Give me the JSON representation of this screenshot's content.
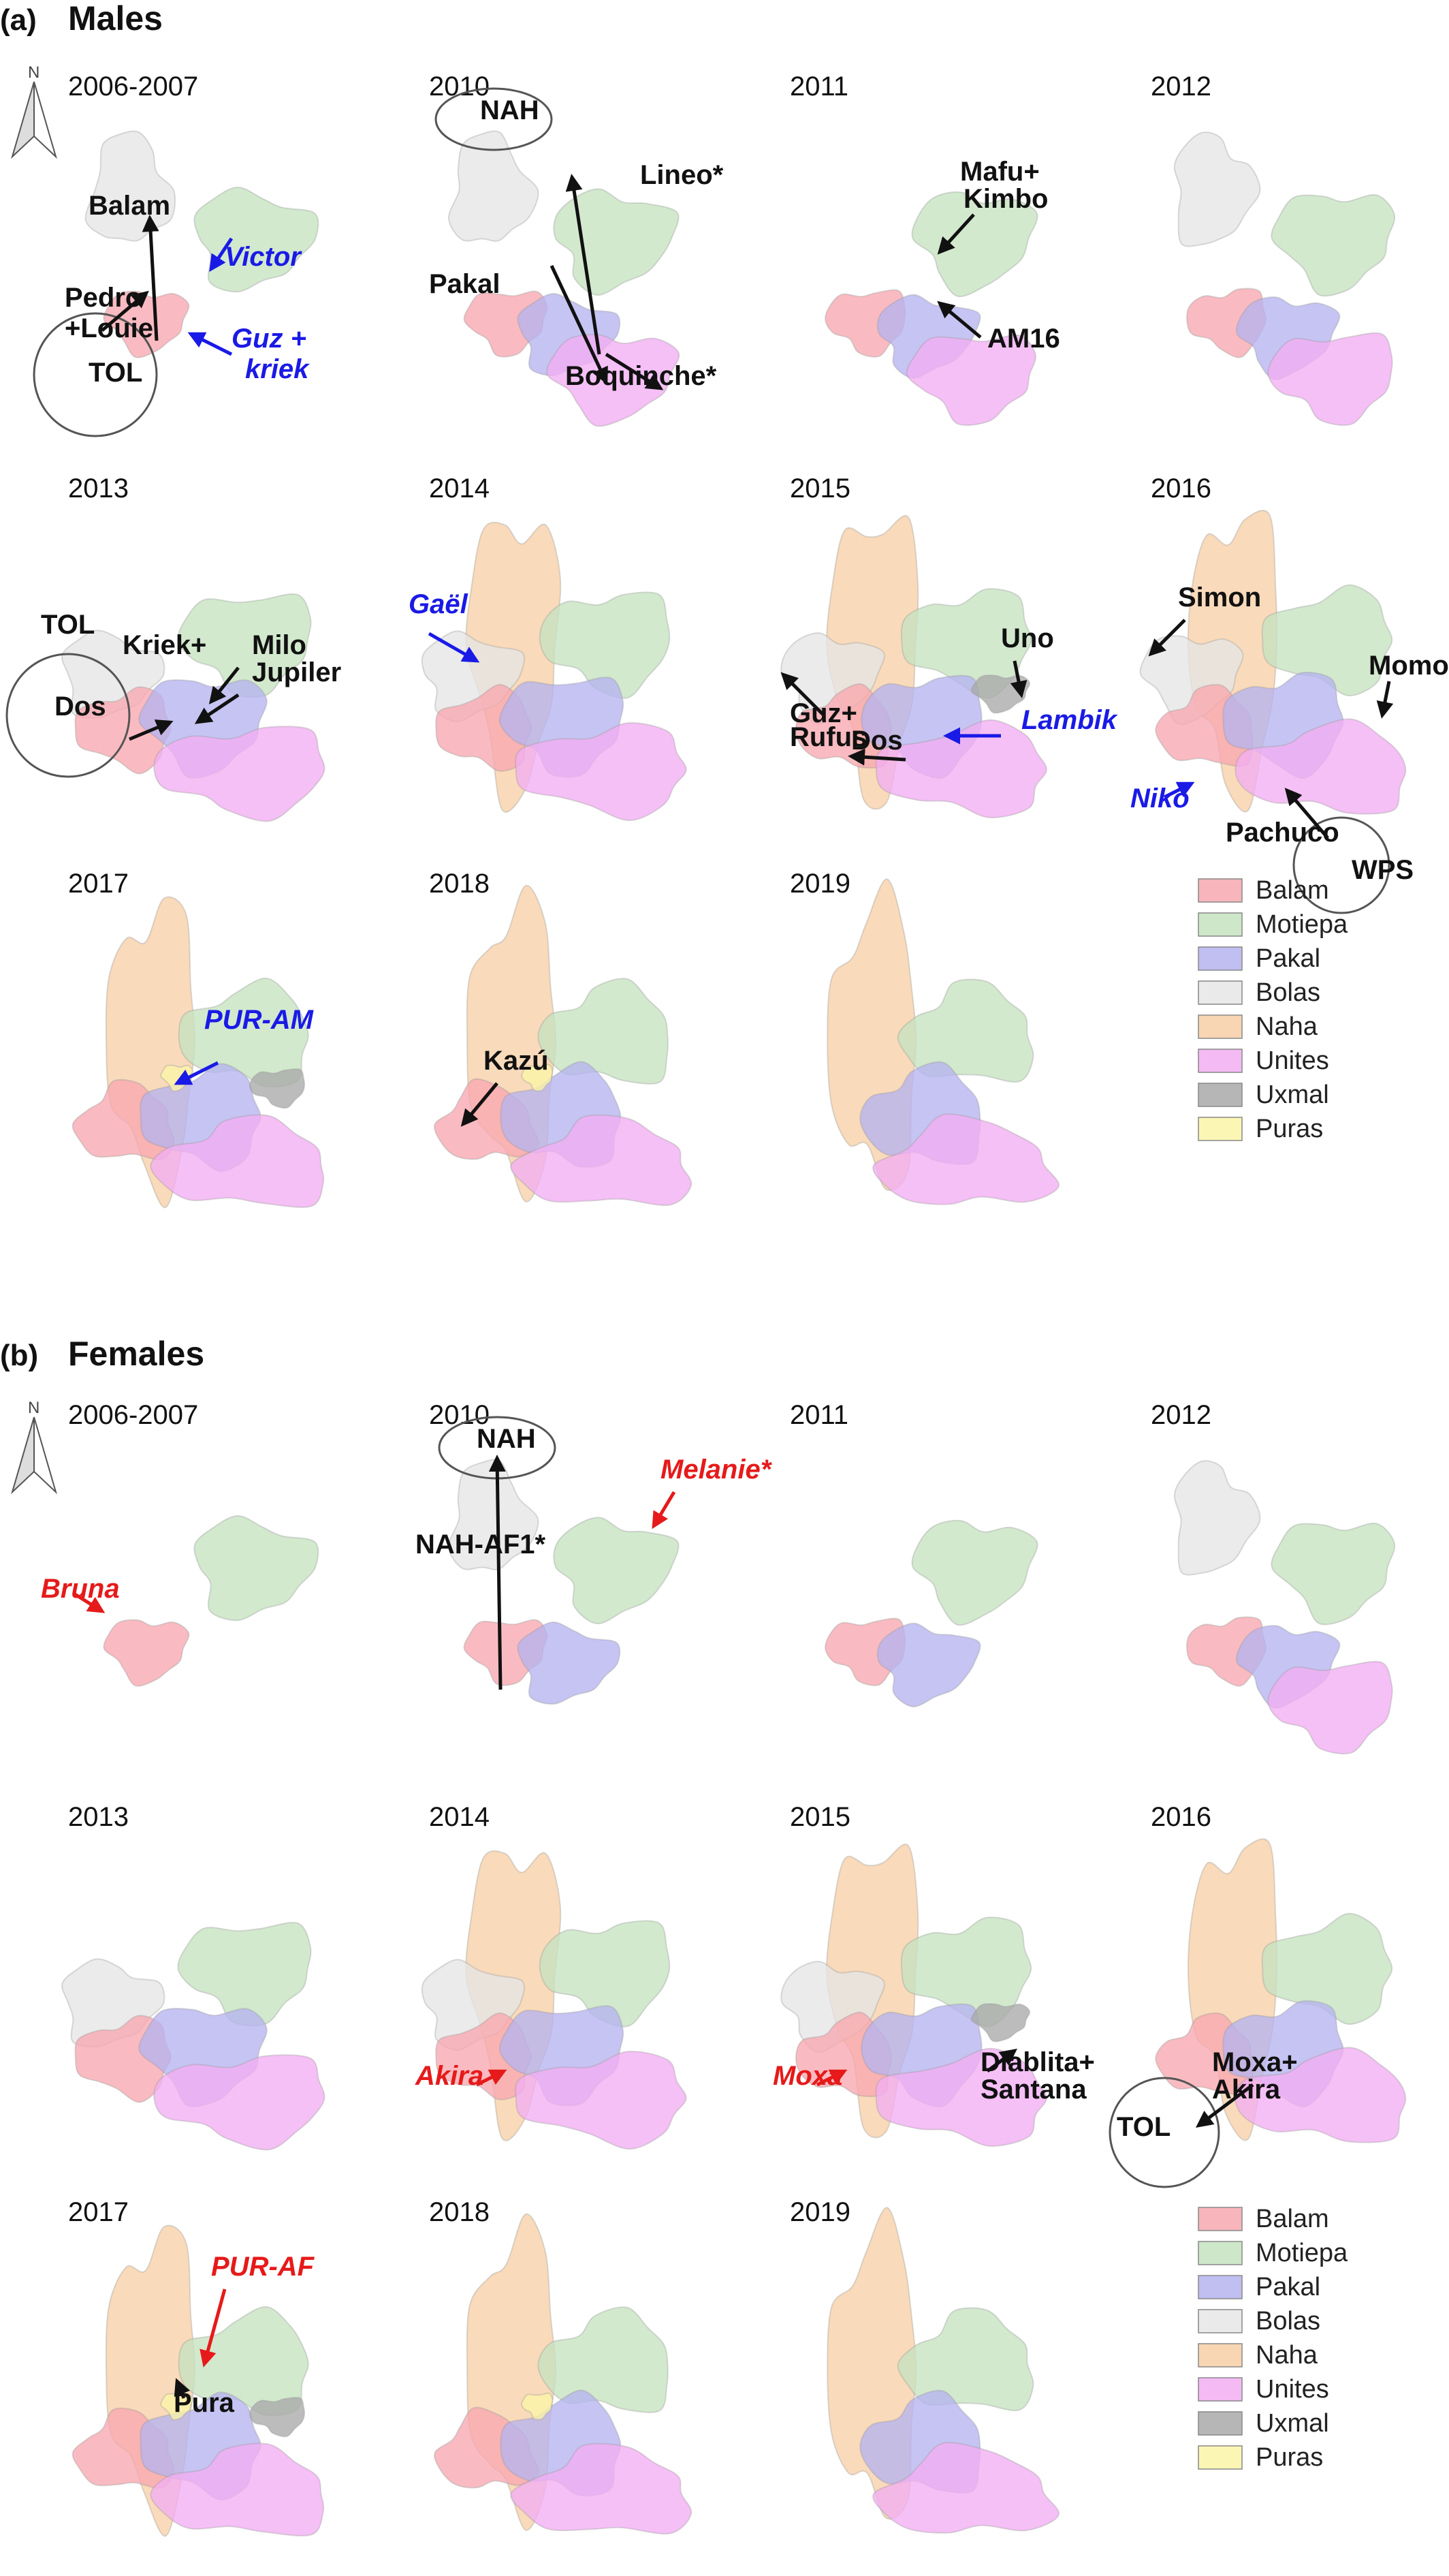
{
  "sections": [
    {
      "id": "a",
      "letter": "(a)",
      "title": "Males",
      "north": "N",
      "panels": [
        {
          "year": "2006-2007",
          "groups": [
            "Balam",
            "Motiepa",
            "Bolas"
          ],
          "circles": [
            "TOL"
          ],
          "labels": [
            {
              "text": "Balam",
              "color": "black",
              "italic": false
            },
            {
              "text": "Pedro",
              "color": "black",
              "italic": false
            },
            {
              "text": "+Louie",
              "color": "black",
              "italic": false
            },
            {
              "text": "TOL",
              "color": "black",
              "italic": false
            },
            {
              "text": "Victor",
              "color": "blue",
              "italic": true
            },
            {
              "text": "Guz +",
              "color": "blue",
              "italic": true
            },
            {
              "text": "kriek",
              "color": "blue",
              "italic": true
            }
          ]
        },
        {
          "year": "2010",
          "groups": [
            "Balam",
            "Motiepa",
            "Pakal",
            "Bolas",
            "Unites"
          ],
          "circles": [
            "NAH"
          ],
          "labels": [
            {
              "text": "NAH",
              "color": "black",
              "italic": false
            },
            {
              "text": "Lineo*",
              "color": "black",
              "italic": false
            },
            {
              "text": "Pakal",
              "color": "black",
              "italic": false
            },
            {
              "text": "Boquinche*",
              "color": "black",
              "italic": false
            }
          ]
        },
        {
          "year": "2011",
          "groups": [
            "Balam",
            "Motiepa",
            "Pakal",
            "Unites"
          ],
          "circles": [],
          "labels": [
            {
              "text": "Mafu+",
              "color": "black",
              "italic": false
            },
            {
              "text": "Kimbo",
              "color": "black",
              "italic": false
            },
            {
              "text": "AM16",
              "color": "black",
              "italic": false
            }
          ]
        },
        {
          "year": "2012",
          "groups": [
            "Balam",
            "Motiepa",
            "Pakal",
            "Bolas",
            "Unites"
          ],
          "circles": [],
          "labels": []
        },
        {
          "year": "2013",
          "groups": [
            "Balam",
            "Motiepa",
            "Pakal",
            "Bolas",
            "Unites"
          ],
          "circles": [
            "TOL"
          ],
          "labels": [
            {
              "text": "Kriek+",
              "color": "black",
              "italic": false
            },
            {
              "text": "Milo",
              "color": "black",
              "italic": false
            },
            {
              "text": "Jupiler",
              "color": "black",
              "italic": false
            },
            {
              "text": "Dos",
              "color": "black",
              "italic": false
            },
            {
              "text": "TOL",
              "color": "black",
              "italic": false
            }
          ]
        },
        {
          "year": "2014",
          "groups": [
            "Balam",
            "Motiepa",
            "Pakal",
            "Bolas",
            "Naha",
            "Unites"
          ],
          "circles": [],
          "labels": [
            {
              "text": "Gaël",
              "color": "blue",
              "italic": true
            }
          ]
        },
        {
          "year": "2015",
          "groups": [
            "Balam",
            "Motiepa",
            "Pakal",
            "Bolas",
            "Naha",
            "Unites",
            "Uxmal"
          ],
          "circles": [],
          "labels": [
            {
              "text": "Uno",
              "color": "black",
              "italic": false
            },
            {
              "text": "Guz+",
              "color": "black",
              "italic": false
            },
            {
              "text": "Rufus",
              "color": "black",
              "italic": false
            },
            {
              "text": "Dos",
              "color": "black",
              "italic": false
            },
            {
              "text": "Lambik",
              "color": "blue",
              "italic": true
            }
          ]
        },
        {
          "year": "2016",
          "groups": [
            "Balam",
            "Motiepa",
            "Pakal",
            "Bolas",
            "Naha",
            "Unites"
          ],
          "circles": [
            "WPS"
          ],
          "labels": [
            {
              "text": "Simon",
              "color": "black",
              "italic": false
            },
            {
              "text": "Momo",
              "color": "black",
              "italic": false
            },
            {
              "text": "Niko",
              "color": "blue",
              "italic": true
            },
            {
              "text": "Pachuco",
              "color": "black",
              "italic": false
            },
            {
              "text": "WPS",
              "color": "black",
              "italic": false
            }
          ]
        },
        {
          "year": "2017",
          "groups": [
            "Balam",
            "Motiepa",
            "Pakal",
            "Naha",
            "Unites",
            "Uxmal",
            "Puras"
          ],
          "circles": [],
          "labels": [
            {
              "text": "PUR-AM",
              "color": "blue",
              "italic": true
            }
          ]
        },
        {
          "year": "2018",
          "groups": [
            "Balam",
            "Motiepa",
            "Pakal",
            "Naha",
            "Unites",
            "Puras"
          ],
          "circles": [],
          "labels": [
            {
              "text": "Kazú",
              "color": "black",
              "italic": false
            }
          ]
        },
        {
          "year": "2019",
          "groups": [
            "Motiepa",
            "Pakal",
            "Naha",
            "Unites"
          ],
          "circles": [],
          "labels": []
        }
      ],
      "legend": [
        "Balam",
        "Motiepa",
        "Pakal",
        "Bolas",
        "Naha",
        "Unites",
        "Uxmal",
        "Puras"
      ]
    },
    {
      "id": "b",
      "letter": "(b)",
      "title": "Females",
      "north": "N",
      "panels": [
        {
          "year": "2006-2007",
          "groups": [
            "Balam",
            "Motiepa"
          ],
          "circles": [],
          "labels": [
            {
              "text": "Bruna",
              "color": "red",
              "italic": true
            }
          ]
        },
        {
          "year": "2010",
          "groups": [
            "Balam",
            "Motiepa",
            "Pakal",
            "Bolas"
          ],
          "circles": [
            "NAH"
          ],
          "labels": [
            {
              "text": "NAH",
              "color": "black",
              "italic": false
            },
            {
              "text": "Melanie*",
              "color": "red",
              "italic": true
            },
            {
              "text": "NAH-AF1*",
              "color": "black",
              "italic": false
            }
          ]
        },
        {
          "year": "2011",
          "groups": [
            "Balam",
            "Motiepa",
            "Pakal"
          ],
          "circles": [],
          "labels": []
        },
        {
          "year": "2012",
          "groups": [
            "Balam",
            "Motiepa",
            "Pakal",
            "Bolas",
            "Unites"
          ],
          "circles": [],
          "labels": []
        },
        {
          "year": "2013",
          "groups": [
            "Balam",
            "Motiepa",
            "Pakal",
            "Bolas",
            "Unites"
          ],
          "circles": [],
          "labels": []
        },
        {
          "year": "2014",
          "groups": [
            "Balam",
            "Motiepa",
            "Pakal",
            "Bolas",
            "Naha",
            "Unites"
          ],
          "circles": [],
          "labels": [
            {
              "text": "Akira",
              "color": "red",
              "italic": true
            }
          ]
        },
        {
          "year": "2015",
          "groups": [
            "Balam",
            "Motiepa",
            "Pakal",
            "Bolas",
            "Naha",
            "Unites",
            "Uxmal"
          ],
          "circles": [],
          "labels": [
            {
              "text": "Moxa",
              "color": "red",
              "italic": true
            },
            {
              "text": "Diablita+",
              "color": "black",
              "italic": false
            },
            {
              "text": "Santana",
              "color": "black",
              "italic": false
            }
          ]
        },
        {
          "year": "2016",
          "groups": [
            "Balam",
            "Motiepa",
            "Pakal",
            "Naha",
            "Unites"
          ],
          "circles": [
            "TOL"
          ],
          "labels": [
            {
              "text": "Moxa+",
              "color": "black",
              "italic": false
            },
            {
              "text": "Akira",
              "color": "black",
              "italic": false
            },
            {
              "text": "TOL",
              "color": "black",
              "italic": false
            }
          ]
        },
        {
          "year": "2017",
          "groups": [
            "Balam",
            "Motiepa",
            "Pakal",
            "Naha",
            "Unites",
            "Uxmal",
            "Puras"
          ],
          "circles": [],
          "labels": [
            {
              "text": "PUR-AF",
              "color": "red",
              "italic": true
            },
            {
              "text": "Pura",
              "color": "black",
              "italic": false
            }
          ]
        },
        {
          "year": "2018",
          "groups": [
            "Balam",
            "Motiepa",
            "Pakal",
            "Naha",
            "Unites",
            "Puras"
          ],
          "circles": [],
          "labels": []
        },
        {
          "year": "2019",
          "groups": [
            "Motiepa",
            "Pakal",
            "Naha",
            "Unites"
          ],
          "circles": [],
          "labels": []
        }
      ],
      "legend": [
        "Balam",
        "Motiepa",
        "Pakal",
        "Bolas",
        "Naha",
        "Unites",
        "Uxmal",
        "Puras"
      ]
    }
  ],
  "group_colors": {
    "Balam": "#f7a8b0",
    "Motiepa": "#c5e3c0",
    "Pakal": "#b6b3ef",
    "Bolas": "#e6e6e6",
    "Naha": "#f7cfa6",
    "Unites": "#f2aef2",
    "Uxmal": "#a9a9a9",
    "Puras": "#fbf5a8"
  },
  "label_colors": {
    "black": "#111111",
    "blue": "#1a1ae6",
    "red": "#e61a1a"
  }
}
